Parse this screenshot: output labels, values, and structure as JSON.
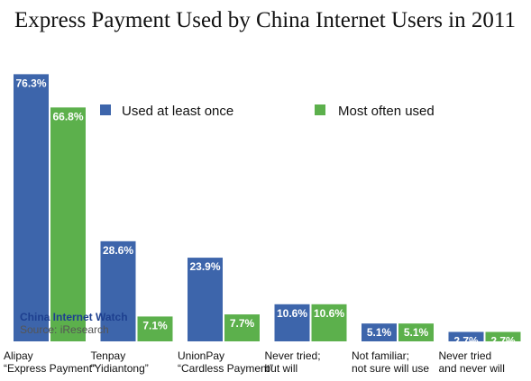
{
  "chart_data": {
    "type": "bar",
    "title": "Express Payment Used by China Internet Users in 2011",
    "categories": [
      [
        "Alipay",
        "“Express Payment”"
      ],
      [
        "Tenpay",
        "“Yidiantong”"
      ],
      [
        "UnionPay",
        "“Cardless Payment”"
      ],
      [
        "Never tried;",
        "but will"
      ],
      [
        "Not familiar;",
        "not sure will use"
      ],
      [
        "Never tried",
        "and never will"
      ]
    ],
    "series": [
      {
        "name": "Used at least once",
        "color": "#3d65ab",
        "values": [
          76.3,
          28.6,
          23.9,
          10.6,
          5.1,
          2.7
        ],
        "labels": [
          "76.3%",
          "28.6%",
          "23.9%",
          "10.6%",
          "5.1%",
          "2.7%"
        ]
      },
      {
        "name": "Most often used",
        "color": "#5cb04c",
        "values": [
          66.8,
          7.1,
          7.7,
          10.6,
          5.1,
          2.7
        ],
        "labels": [
          "66.8%",
          "7.1%",
          "7.7%",
          "10.6%",
          "5.1%",
          "2.7%"
        ]
      }
    ],
    "ylim": [
      0,
      80
    ],
    "legend_position": "top-right",
    "grid": false
  },
  "watermark": {
    "brand": "China Internet Watch",
    "source": "Source: iResearch"
  }
}
